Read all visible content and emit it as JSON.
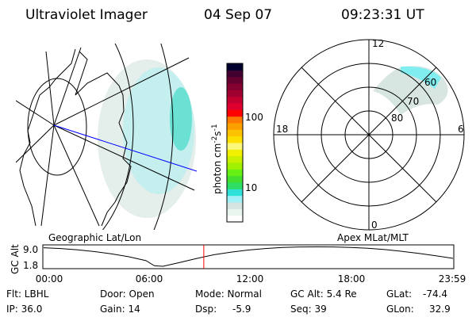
{
  "header": {
    "instrument": "Ultraviolet Imager",
    "date": "04 Sep 07",
    "time": "09:23:31 UT"
  },
  "colorbar": {
    "unit_label": "photon cm",
    "unit_sup1": "-2",
    "unit_mid": "s",
    "unit_sup2": "-1",
    "ticks": [
      "100",
      "10"
    ],
    "colors": [
      "#ffffff",
      "#e8f4ee",
      "#d4e4e0",
      "#9ef0f6",
      "#2ee0d8",
      "#2edc66",
      "#44e030",
      "#66f014",
      "#a0f000",
      "#c8f000",
      "#f0f000",
      "#fcf87c",
      "#fce000",
      "#fcc400",
      "#fca000",
      "#fc7800",
      "#ff0000",
      "#e00030",
      "#c40030",
      "#a00030",
      "#840030",
      "#640030",
      "#400030",
      "#000030"
    ]
  },
  "geo_map": {
    "label": "Geographic Lat/Lon"
  },
  "polar_map": {
    "label": "Apex MLat/MLT",
    "mlt_labels": [
      "12",
      "18",
      "6",
      "0"
    ],
    "lat_labels": [
      "80",
      "70",
      "60"
    ]
  },
  "chart_data": {
    "type": "line",
    "title": "",
    "ylabel": "GC Alt",
    "xlabel": "",
    "x_ticks": [
      "00:00",
      "06:00",
      "12:00",
      "18:00",
      "23:59"
    ],
    "y_ticks": [
      "9.0",
      "1.8"
    ],
    "xlim_hours": [
      0,
      24
    ],
    "ylim": [
      1.2,
      9.8
    ],
    "current_time_hours": 9.39,
    "x": [
      0,
      1,
      2,
      3,
      4,
      5,
      6,
      6.5,
      7,
      8,
      9,
      10,
      11,
      12,
      13,
      14,
      15,
      16,
      17,
      18,
      19,
      20,
      21,
      22,
      23,
      24
    ],
    "y": [
      9.0,
      8.7,
      8.2,
      7.5,
      6.6,
      5.5,
      4.0,
      2.0,
      1.8,
      3.3,
      4.9,
      6.3,
      7.3,
      8.1,
      8.7,
      9.1,
      9.3,
      9.35,
      9.3,
      9.1,
      8.8,
      8.3,
      7.6,
      6.8,
      5.9,
      4.9
    ]
  },
  "status": {
    "filter": "Flt: LBHL",
    "ip": "IP: 36.0",
    "door": "Door: Open",
    "gain": "Gain: 14",
    "mode": "Mode: Normal",
    "dsp_label": "Dsp:",
    "dsp_value": "-5.9",
    "gc_alt": "GC Alt: 5.4 Re",
    "seq": "Seq: 39",
    "glat_label": "GLat:",
    "glat_value": "-74.4",
    "glon_label": "GLon:",
    "glon_value": "32.9"
  }
}
